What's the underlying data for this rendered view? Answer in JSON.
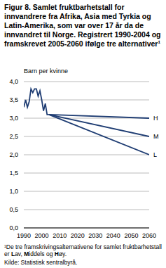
{
  "chart_data": {
    "type": "line",
    "title": "Figur 8. Samlet fruktbarhetstall for innvandrere fra Afrika, Asia med Tyrkia og Latin-Amerika, som var over 17 år da de innvandret til Norge. Registrert 1990-2004 og framskrevet 2005-2060 ifølge tre alternativer¹",
    "y_label": "Barn per kvinne",
    "footnote": "¹De tre framskrivingsalternativene for samlet fruktbarhetstall er Lav, Middels og Høy.",
    "source": "Kilde: Statistisk sentralbyrå.",
    "x": [
      1990,
      1991,
      1992,
      1993,
      1994,
      1995,
      1996,
      1997,
      1998,
      1999,
      2000,
      2001,
      2002,
      2003,
      2004,
      2060
    ],
    "series": [
      {
        "color": "#1f3d73",
        "values": [
          3.3,
          3.5,
          3.3,
          3.45,
          3.8,
          3.7,
          3.8,
          3.8,
          3.6,
          3.75,
          3.5,
          3.2,
          3.4,
          3.1,
          3.1,
          null
        ]
      },
      {
        "name": "H",
        "color": "#1f3d73",
        "values": [
          null,
          null,
          null,
          null,
          null,
          null,
          null,
          null,
          null,
          null,
          null,
          null,
          null,
          null,
          3.1,
          3.0
        ]
      },
      {
        "name": "M",
        "color": "#1f3d73",
        "values": [
          null,
          null,
          null,
          null,
          null,
          null,
          null,
          null,
          null,
          null,
          null,
          null,
          null,
          null,
          3.1,
          2.5
        ]
      },
      {
        "name": "L",
        "color": "#1f3d73",
        "values": [
          null,
          null,
          null,
          null,
          null,
          null,
          null,
          null,
          null,
          null,
          null,
          null,
          null,
          null,
          3.1,
          2.0
        ]
      }
    ],
    "xlim": [
      1990,
      2060
    ],
    "xticks": [
      1990,
      2000,
      2010,
      2020,
      2030,
      2040,
      2050,
      2060
    ],
    "ylim": [
      0,
      4
    ],
    "yticks": [
      {
        "value": 0,
        "label": "0,0"
      },
      {
        "value": 0.5,
        "label": "0,5"
      },
      {
        "value": 1,
        "label": "1,0"
      },
      {
        "value": 1.5,
        "label": "1,5"
      },
      {
        "value": 2,
        "label": "2,0"
      },
      {
        "value": 2.5,
        "label": "2,5"
      },
      {
        "value": 3,
        "label": "3,0"
      },
      {
        "value": 3.5,
        "label": "3,5"
      },
      {
        "value": 4,
        "label": "4,0"
      }
    ],
    "grid": true
  }
}
